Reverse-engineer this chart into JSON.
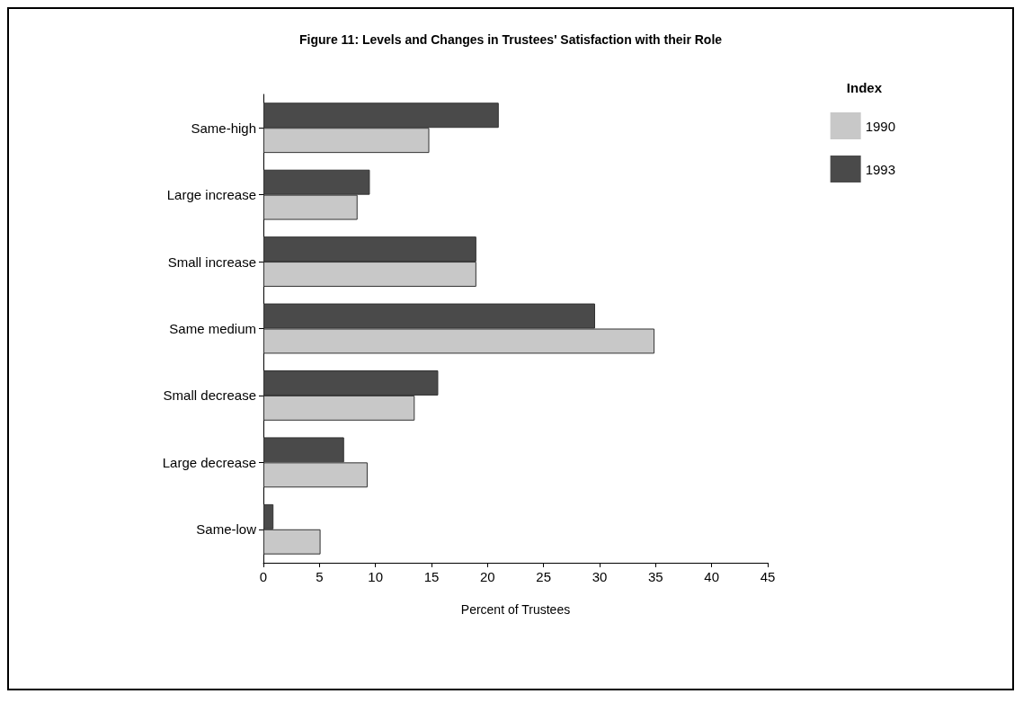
{
  "chart_data": {
    "type": "bar",
    "orientation": "horizontal",
    "title": "Figure 11: Levels and Changes in Trustees' Satisfaction with their Role",
    "xlabel": "Percent of Trustees",
    "legend_title": "Index",
    "legend": "top right",
    "grid": false,
    "categories": [
      "Same-high",
      "Large increase",
      "Small increase",
      "Same medium",
      "Small decrease",
      "Large decrease",
      "Same-low"
    ],
    "series": [
      {
        "name": "1990",
        "color": "#c8c8c8",
        "values": [
          14.8,
          8.4,
          19,
          34.9,
          13.5,
          9.3,
          5.1
        ]
      },
      {
        "name": "1993",
        "color": "#4a4a4a",
        "values": [
          21,
          9.5,
          19,
          29.6,
          15.6,
          7.2,
          0.9
        ]
      }
    ],
    "xlim": [
      0,
      45
    ],
    "xticks": [
      0,
      5,
      10,
      15,
      20,
      25,
      30,
      35,
      40,
      45
    ]
  }
}
